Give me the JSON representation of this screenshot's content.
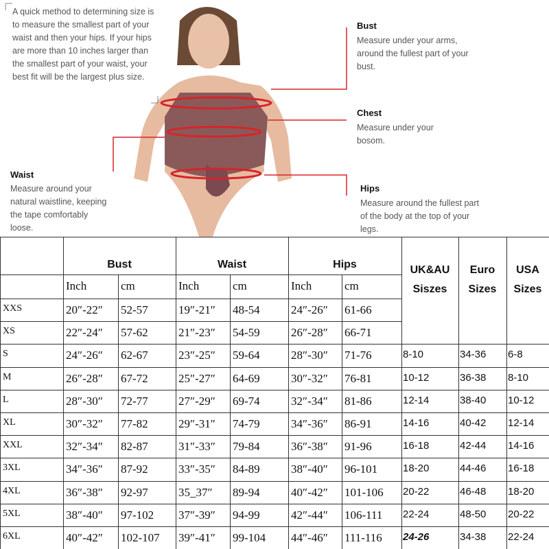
{
  "guide": {
    "note": "A quick method to determining size is to measure the smallest part of your waist and then your hips. If your hips are more than 10 inches larger than the smallest part of your waist, your best fit will be the largest plus size.",
    "bust": {
      "title": "Bust",
      "text": "Measure under your arms, around the fullest part of your bust."
    },
    "chest": {
      "title": "Chest",
      "text": "Measure under your bosom."
    },
    "waist": {
      "title": "Waist",
      "text": "Measure around your natural waistline, keeping the tape comfortably loose."
    },
    "hips": {
      "title": "Hips",
      "text": "Measure around the fullest part of the body at the top of your legs."
    }
  },
  "table": {
    "groups": [
      "Bust",
      "Waist",
      "Hips"
    ],
    "units": [
      "Inch",
      "cm",
      "Inch",
      "cm",
      "Inch",
      "cm"
    ],
    "rows": [
      [
        "XXS",
        "20″-22″",
        "52-57",
        "19″-21″",
        "48-54",
        "24″-26″",
        "61-66"
      ],
      [
        "XS",
        "22″-24″",
        "57-62",
        "21″-23″",
        "54-59",
        "26″-28″",
        "66-71"
      ],
      [
        "S",
        "24″-26″",
        "62-67",
        "23″-25″",
        "59-64",
        "28″-30″",
        "71-76"
      ],
      [
        "M",
        "26″-28″",
        "67-72",
        "25″-27″",
        "64-69",
        "30″-32″",
        "76-81"
      ],
      [
        "L",
        "28″-30″",
        "72-77",
        "27″-29″",
        "69-74",
        "32″-34″",
        "81-86"
      ],
      [
        "XL",
        "30″-32″",
        "77-82",
        "29″-31″",
        "74-79",
        "34″-36″",
        "86-91"
      ],
      [
        "XXL",
        "32″-34″",
        "82-87",
        "31″-33″",
        "79-84",
        "36″-38″",
        "91-96"
      ],
      [
        "3XL",
        "34″-36″",
        "87-92",
        "33″-35″",
        "84-89",
        "38″-40″",
        "96-101"
      ],
      [
        "4XL",
        "36″-38″",
        "92-97",
        "35_37″",
        "89-94",
        "40″-42″",
        "101-106"
      ],
      [
        "5XL",
        "38″-40″",
        "97-102",
        "37″-39″",
        "94-99",
        "42″-44″",
        "106-111"
      ],
      [
        "6XL",
        "40″-42″",
        "102-107",
        "39″-41″",
        "99-104",
        "44″-46″",
        "111-116"
      ]
    ]
  },
  "conversion": {
    "headers": [
      "UK&AU Siszes",
      "Euro Sizes",
      "USA Sizes"
    ],
    "rows": [
      [
        "8-10",
        "34-36",
        "6-8"
      ],
      [
        "10-12",
        "36-38",
        "8-10"
      ],
      [
        "12-14",
        "38-40",
        "10-12"
      ],
      [
        "14-16",
        "40-42",
        "12-14"
      ],
      [
        "16-18",
        "42-44",
        "14-16"
      ],
      [
        "18-20",
        "44-46",
        "16-18"
      ],
      [
        "20-22",
        "46-48",
        "18-20"
      ],
      [
        "22-24",
        "48-50",
        "20-22"
      ],
      [
        "24-26",
        "34-38",
        "22-24"
      ]
    ]
  }
}
